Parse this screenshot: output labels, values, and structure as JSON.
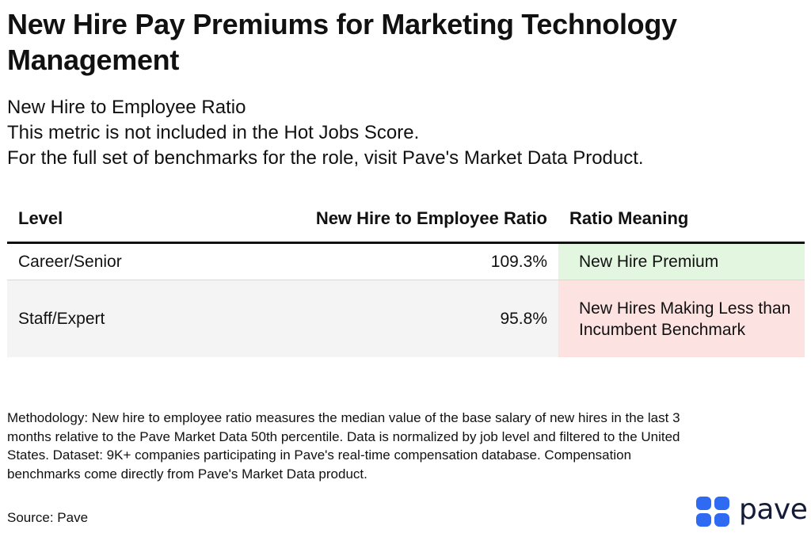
{
  "header": {
    "title": "New Hire Pay Premiums for Marketing Technology Management",
    "subtitle_lines": [
      "New Hire to Employee Ratio",
      "This metric is not included in the Hot Jobs Score.",
      "For the full set of benchmarks for the role, visit Pave's Market Data Product."
    ]
  },
  "chart_data": {
    "type": "table",
    "columns": [
      "Level",
      "New Hire to Employee Ratio",
      "Ratio Meaning"
    ],
    "rows": [
      {
        "level": "Career/Senior",
        "ratio": "109.3%",
        "ratio_value": 109.3,
        "meaning": "New Hire Premium"
      },
      {
        "level": "Staff/Expert",
        "ratio": "95.8%",
        "ratio_value": 95.8,
        "meaning": "New Hires Making Less than Incumbent Benchmark"
      }
    ],
    "colors": {
      "premium": "#e3f6e0",
      "less": "#fde2e2"
    }
  },
  "footer": {
    "methodology": "Methodology: New hire to employee ratio measures the median value of the base salary of new hires in the last 3 months relative to the Pave Market Data 50th percentile. Data is normalized by job level and filtered to the United States. Dataset: 9K+ companies participating in Pave's real-time compensation database. Compensation benchmarks come directly from Pave's Market Data product.",
    "source": "Source: Pave"
  },
  "brand": {
    "name": "pave",
    "icon": "pave-logo-icon",
    "color": "#2f6bf2"
  }
}
